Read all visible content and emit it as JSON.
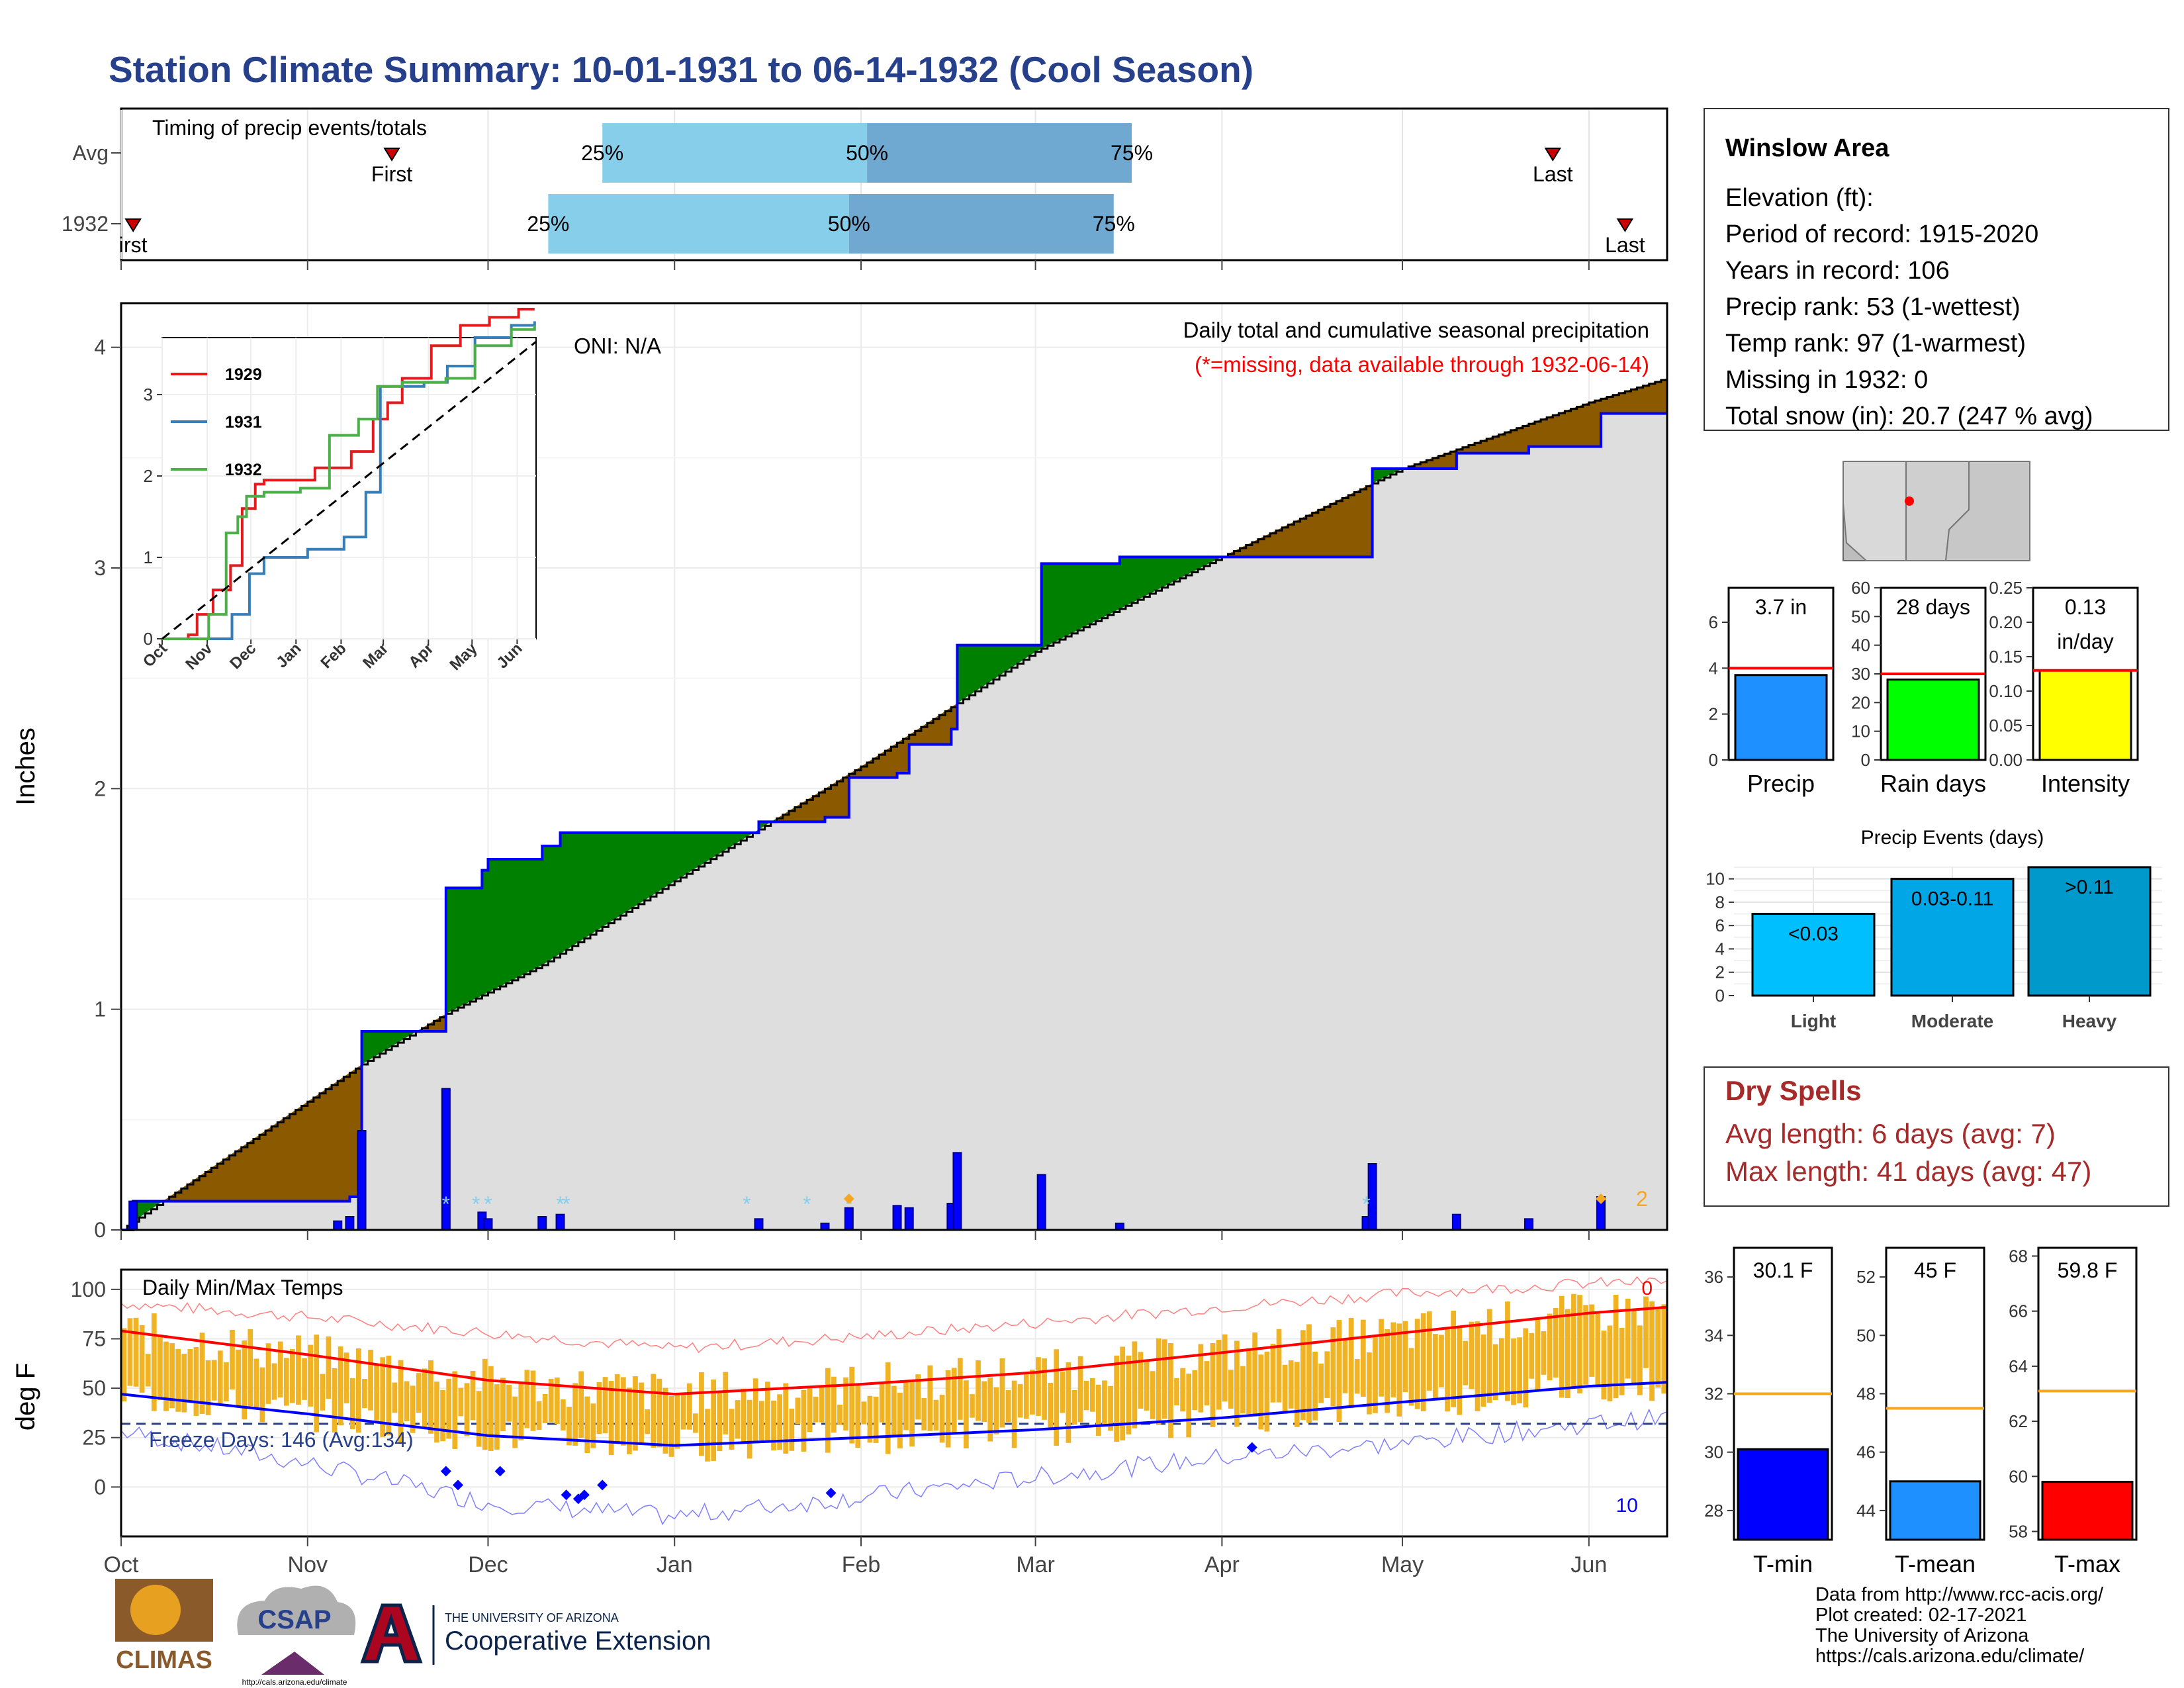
{
  "title": "Station Climate Summary: 10-01-1931 to 06-14-1932 (Cool Season)",
  "colors": {
    "title": "#26408b",
    "light_blue": "#87ceeb",
    "steel_blue": "#6fa8d0",
    "brown": "#8b5a00",
    "green": "#008000",
    "gray_fill": "#dedede",
    "blue": "#0000ff",
    "red": "#ff0000",
    "orange": "#f5a623",
    "dry_red": "#a52a2a",
    "gold": "#f0b323"
  },
  "timing": {
    "title": "Timing of precip events/totals",
    "rows": [
      {
        "label": "Avg",
        "first_label": "First",
        "last_label": "Last",
        "first": "1931-11-15",
        "last": "1932-05-26",
        "p25": "1931-12-20",
        "p50": "1932-02-02",
        "p75": "1932-03-17",
        "l25": "25%",
        "l50": "50%",
        "l75": "75%"
      },
      {
        "label": "1932",
        "first_label": "irst",
        "last_label": "Last",
        "first": "1931-10-03",
        "last": "1932-06-07",
        "p25": "1931-12-11",
        "p50": "1932-01-30",
        "p75": "1932-03-14",
        "l25": "25%",
        "l50": "50%",
        "l75": "75%"
      }
    ]
  },
  "main": {
    "ylabel": "Inches",
    "annotation": "Daily total and cumulative seasonal precipitation",
    "missing_note": "(*=missing, data available through 1932-06-14)",
    "oni": "ONI: N/A",
    "yticks": [
      "0",
      "1",
      "2",
      "3",
      "4"
    ],
    "missing_count": "2",
    "freeze_text": "Freeze Days: 146 (Avg:134)"
  },
  "inset": {
    "legend": [
      "1929",
      "1931",
      "1932"
    ],
    "months": [
      "Oct",
      "Nov",
      "Dec",
      "Jan",
      "Feb",
      "Mar",
      "Apr",
      "May",
      "Jun"
    ],
    "yticks": [
      "0",
      "1",
      "2",
      "3"
    ]
  },
  "temps": {
    "title": "Daily Min/Max Temps",
    "ylabel": "deg F",
    "yticks": [
      "0",
      "25",
      "50",
      "75",
      "100"
    ],
    "count_top": "0",
    "count_bottom": "10"
  },
  "months": [
    "Oct",
    "Nov",
    "Dec",
    "Jan",
    "Feb",
    "Mar",
    "Apr",
    "May",
    "Jun"
  ],
  "station": {
    "name": "Winslow Area",
    "lines": [
      "Elevation (ft):",
      "Period of record: 1915-2020",
      "Years in record: 106",
      "Precip rank: 53 (1-wettest)",
      "Temp rank: 97 (1-warmest)",
      "Missing in 1932: 0",
      "Total snow (in): 20.7 (247 % avg)"
    ]
  },
  "mini": [
    {
      "label": "Precip",
      "value_text": "3.7 in",
      "value": 3.7,
      "avg": 4.0,
      "max": 7.5,
      "ticks": [
        "0",
        "2",
        "4",
        "6"
      ],
      "color": "#1e90ff"
    },
    {
      "label": "Rain days",
      "value_text": "28 days",
      "value": 28,
      "avg": 30,
      "max": 60,
      "ticks": [
        "0",
        "10",
        "20",
        "30",
        "40",
        "50",
        "60"
      ],
      "color": "#00ff00"
    },
    {
      "label": "Intensity",
      "value_text": "0.13",
      "value_text2": "in/day",
      "value": 0.13,
      "avg": 0.13,
      "max": 0.25,
      "ticks": [
        "0.00",
        "0.05",
        "0.10",
        "0.15",
        "0.20",
        "0.25"
      ],
      "color": "#ffff00"
    }
  ],
  "events": {
    "title": "Precip Events (days)",
    "categories": [
      "Light",
      "Moderate",
      "Heavy"
    ],
    "bar_labels": [
      "<0.03",
      "0.03-0.11",
      ">0.11"
    ],
    "values": [
      7,
      10,
      11
    ],
    "yticks": [
      "0",
      "2",
      "4",
      "6",
      "8",
      "10"
    ],
    "colors": [
      "#00bfff",
      "#00a6e6",
      "#0099cc"
    ]
  },
  "dry": {
    "title": "Dry Spells",
    "avg": "Avg length: 6 days (avg: 7)",
    "max": "Max length: 41 days (avg: 47)"
  },
  "tpanels": [
    {
      "label": "T-min",
      "value_text": "30.1 F",
      "value": 30.1,
      "avg": 32.0,
      "min": 27,
      "max": 37,
      "ticks": [
        "28",
        "30",
        "32",
        "34",
        "36"
      ],
      "color": "#0000ff"
    },
    {
      "label": "T-mean",
      "value_text": "45 F",
      "value": 45.0,
      "avg": 47.5,
      "min": 43,
      "max": 53,
      "ticks": [
        "44",
        "46",
        "48",
        "50",
        "52"
      ],
      "color": "#1e90ff"
    },
    {
      "label": "T-max",
      "value_text": "59.8 F",
      "value": 59.8,
      "avg": 63.1,
      "min": 57.7,
      "max": 68.3,
      "ticks": [
        "58",
        "60",
        "62",
        "64",
        "66",
        "68"
      ],
      "color": "#ff0000"
    }
  ],
  "footer": {
    "credits": [
      "Data from http://www.rcc-acis.org/",
      "Plot created: 02-17-2021",
      "The University of Arizona",
      "https://cals.arizona.edu/climate/"
    ],
    "logo1": "CLIMAS",
    "logo2": "CSAP",
    "logo2_url": "http://cals.arizona.edu/climate",
    "ua_small": "THE UNIVERSITY OF ARIZONA",
    "ua_big": "Cooperative Extension"
  },
  "chart_data": [
    {
      "type": "area",
      "title": "Daily total and cumulative seasonal precipitation",
      "ylabel": "Inches",
      "ylim": [
        0,
        4.2
      ],
      "x_range": [
        "1931-10-01",
        "1932-06-14"
      ],
      "series": [
        {
          "name": "1932",
          "x": [
            "1931-10-01",
            "1931-10-03",
            "1931-11-06",
            "1931-11-08",
            "1931-11-10",
            "1931-11-24",
            "1931-11-30",
            "1931-12-01",
            "1931-12-10",
            "1931-12-13",
            "1932-01-12",
            "1932-01-15",
            "1932-01-26",
            "1932-01-30",
            "1932-02-07",
            "1932-02-09",
            "1932-02-16",
            "1932-02-17",
            "1932-03-01",
            "1932-03-02",
            "1932-03-15",
            "1932-04-01",
            "1932-04-25",
            "1932-04-26",
            "1932-05-10",
            "1932-05-22",
            "1932-06-03",
            "1932-06-14"
          ],
          "values": [
            0.0,
            0.13,
            0.13,
            0.15,
            0.9,
            1.55,
            1.63,
            1.68,
            1.74,
            1.8,
            1.8,
            1.85,
            1.87,
            2.05,
            2.07,
            2.2,
            2.27,
            2.65,
            2.65,
            3.02,
            3.05,
            3.05,
            3.05,
            3.45,
            3.52,
            3.55,
            3.7,
            3.7
          ]
        },
        {
          "name": "Avg",
          "x": [
            "1931-10-01",
            "1931-11-10",
            "1931-11-24",
            "1931-12-10",
            "1932-01-01",
            "1932-02-01",
            "1932-03-01",
            "1932-04-01",
            "1932-05-01",
            "1932-06-01",
            "1932-06-14"
          ],
          "values": [
            0.0,
            0.75,
            0.98,
            1.2,
            1.58,
            2.1,
            2.62,
            3.05,
            3.45,
            3.75,
            3.86
          ]
        }
      ],
      "daily_precip": {
        "dates": [
          "1931-10-03",
          "1931-11-06",
          "1931-11-08",
          "1931-11-10",
          "1931-11-24",
          "1931-11-30",
          "1931-12-01",
          "1931-12-10",
          "1931-12-13",
          "1932-01-15",
          "1932-01-26",
          "1932-01-30",
          "1932-02-07",
          "1932-02-09",
          "1932-02-16",
          "1932-02-17",
          "1932-03-02",
          "1932-03-15",
          "1932-04-25",
          "1932-04-26",
          "1932-05-10",
          "1932-05-22",
          "1932-06-03"
        ],
        "values": [
          0.13,
          0.04,
          0.06,
          0.45,
          0.64,
          0.08,
          0.05,
          0.06,
          0.07,
          0.05,
          0.03,
          0.1,
          0.11,
          0.1,
          0.12,
          0.35,
          0.25,
          0.03,
          0.06,
          0.3,
          0.07,
          0.05,
          0.15
        ]
      }
    },
    {
      "type": "line",
      "title": "Daily Min/Max Temps",
      "ylabel": "deg F",
      "ylim": [
        -25,
        110
      ],
      "x": [
        "1931-10-01",
        "1931-11-01",
        "1931-12-01",
        "1932-01-01",
        "1932-02-01",
        "1932-03-01",
        "1932-04-01",
        "1932-05-01",
        "1932-06-01",
        "1932-06-14"
      ],
      "series": [
        {
          "name": "Avg max",
          "values": [
            79,
            67,
            54,
            47,
            52,
            58,
            68,
            78,
            88,
            91
          ]
        },
        {
          "name": "Avg min",
          "values": [
            47,
            37,
            26,
            21,
            25,
            29,
            35,
            43,
            51,
            53
          ]
        },
        {
          "name": "Record max",
          "values": [
            93,
            86,
            78,
            70,
            76,
            83,
            91,
            98,
            103,
            104
          ]
        },
        {
          "name": "Record min",
          "values": [
            28,
            12,
            -8,
            -15,
            -5,
            5,
            15,
            22,
            32,
            35
          ]
        }
      ]
    },
    {
      "type": "bar",
      "title": "Precip Events (days)",
      "categories": [
        "Light",
        "Moderate",
        "Heavy"
      ],
      "values": [
        7,
        10,
        11
      ],
      "ylim": [
        0,
        11
      ]
    }
  ]
}
